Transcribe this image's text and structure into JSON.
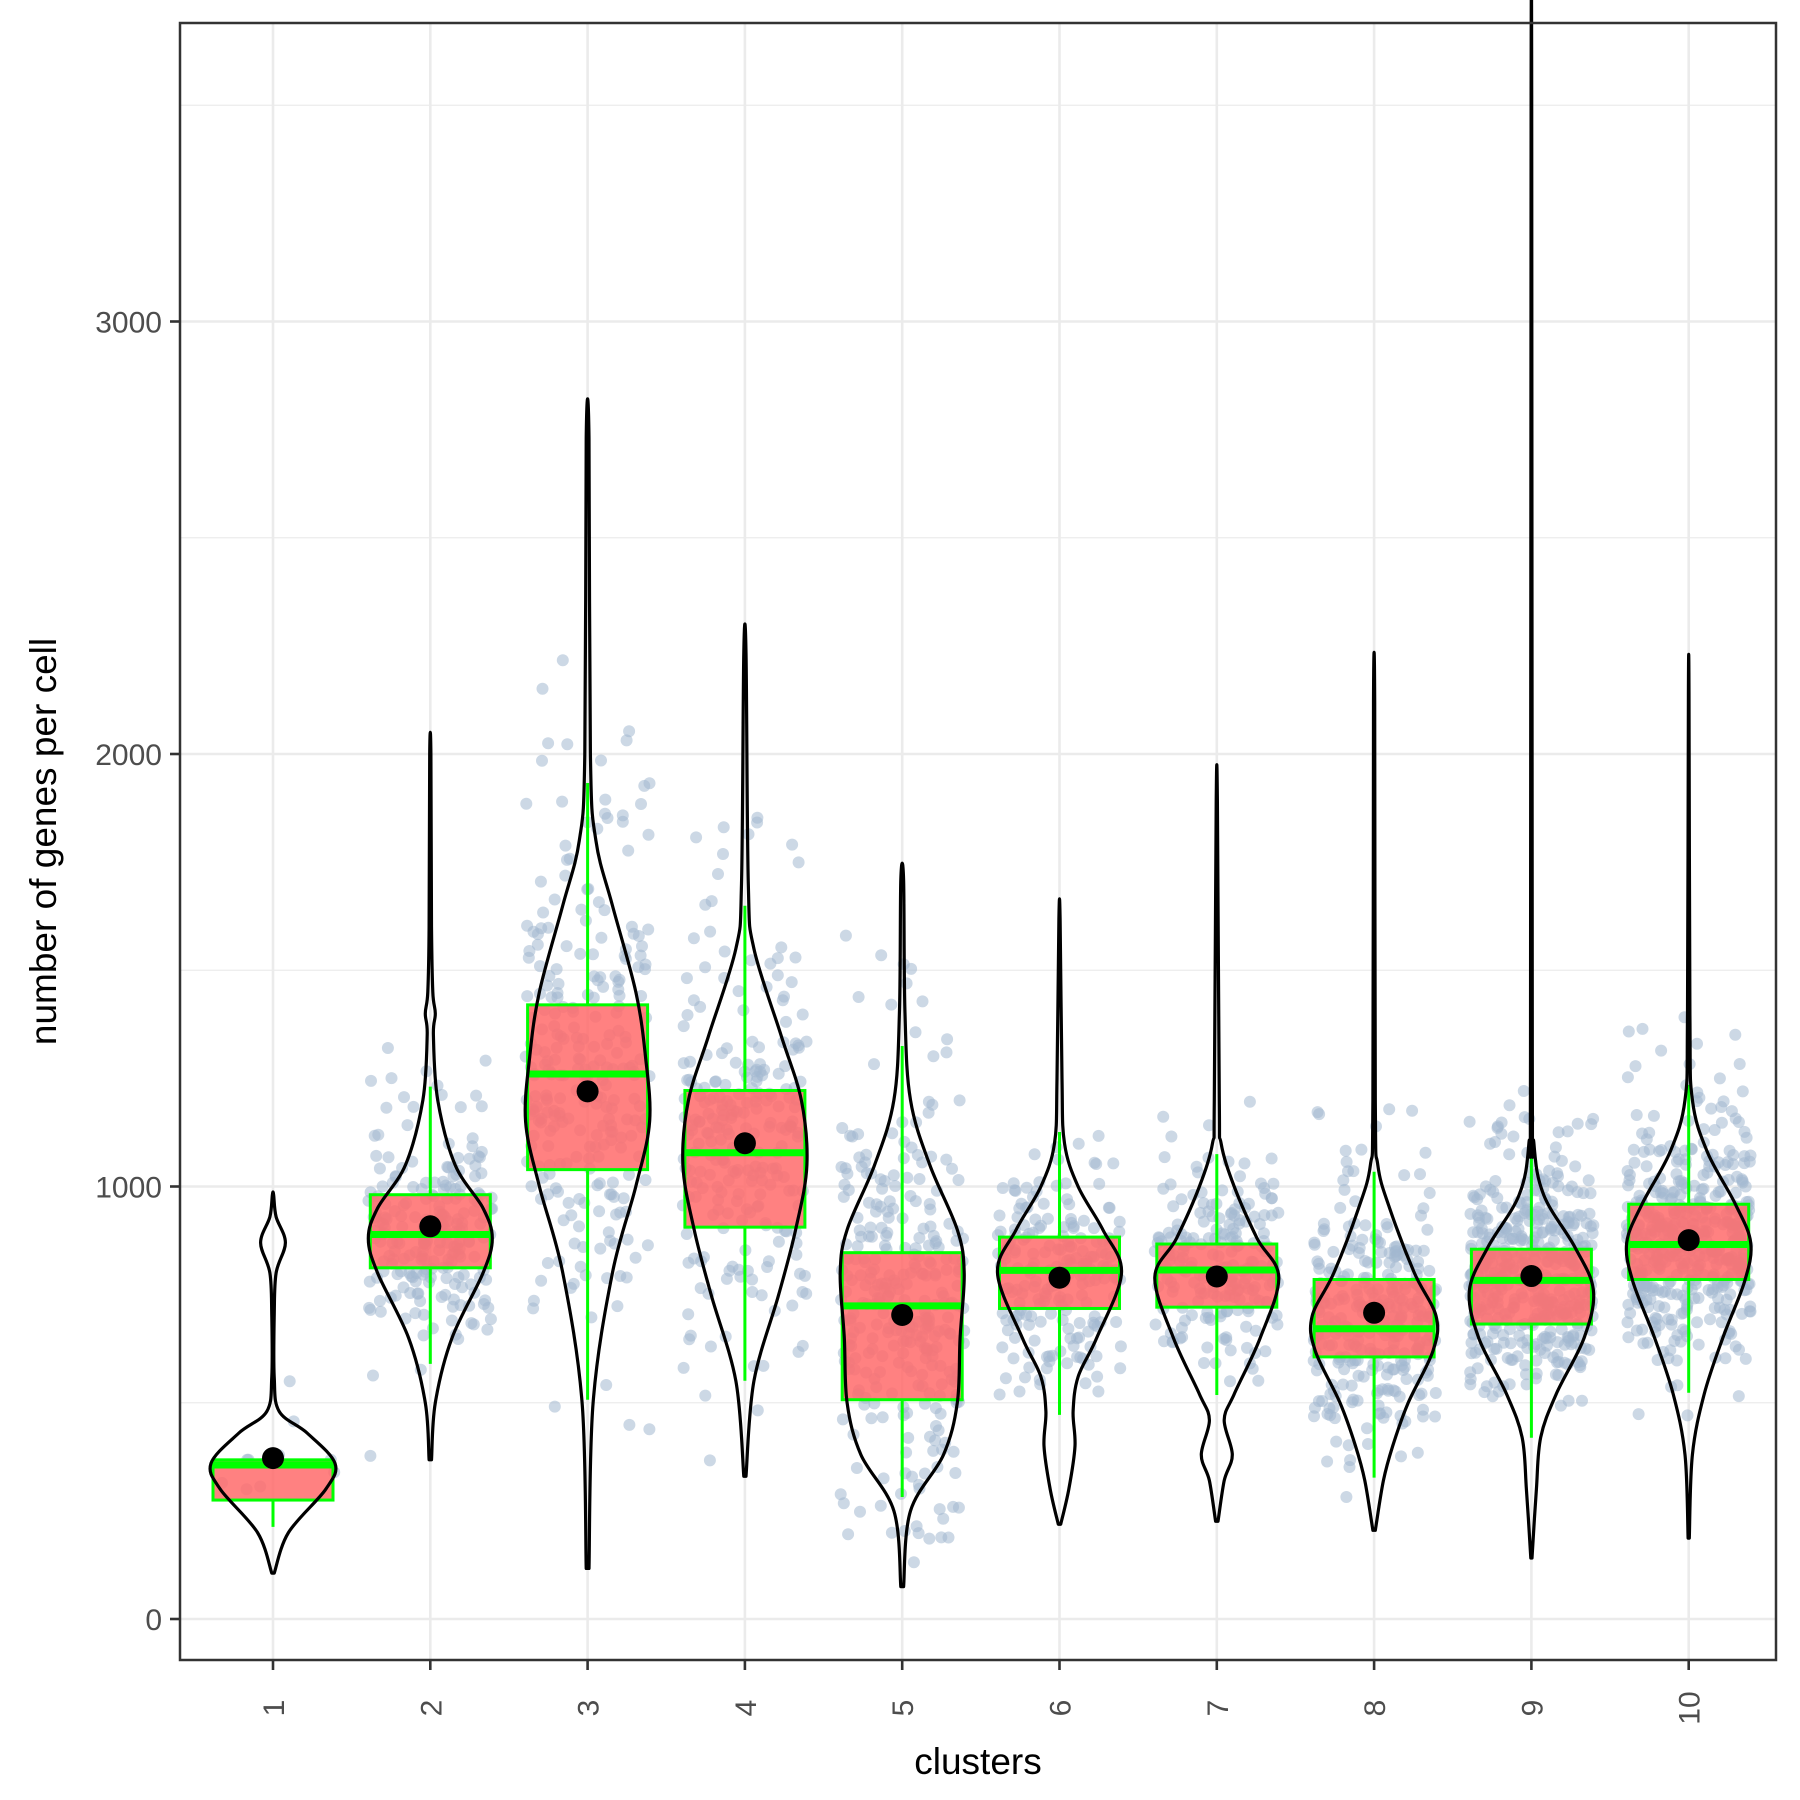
{
  "chart_data": {
    "type": "violin-box-jitter",
    "title": "",
    "xlabel": "clusters",
    "ylabel": "number of genes per cell",
    "ylim": [
      -90,
      3800
    ],
    "y_major_ticks": [
      0,
      1000,
      2000,
      3000
    ],
    "y_minor_gridlines": [
      500,
      1500,
      2500,
      3500
    ],
    "grid": true,
    "legend": "none",
    "x_tick_label_rotation": "vertical",
    "categories": [
      "1",
      "2",
      "3",
      "4",
      "5",
      "6",
      "7",
      "8",
      "9",
      "10"
    ],
    "colors": {
      "box_fill": "#ff6b6b",
      "box_border": "#00ff00",
      "violin_line": "#000000",
      "mean_dot": "#000000",
      "points": "#a3b8d0",
      "grid": "#ebebeb",
      "panel_border": "#333333"
    },
    "series": [
      {
        "cluster": "1",
        "n_points": 10,
        "violin_min": 106,
        "violin_max": 981,
        "whisker_low": 213,
        "q1": 275,
        "median": 356,
        "q3": 368,
        "whisker_high": 368,
        "mean": 372,
        "density": [
          [
            106,
            0.02
          ],
          [
            200,
            0.25
          ],
          [
            300,
            0.85
          ],
          [
            360,
            1.0
          ],
          [
            430,
            0.55
          ],
          [
            480,
            0.1
          ],
          [
            560,
            0.02
          ],
          [
            700,
            0.02
          ],
          [
            800,
            0.05
          ],
          [
            870,
            0.2
          ],
          [
            930,
            0.05
          ],
          [
            981,
            0.01
          ]
        ]
      },
      {
        "cluster": "2",
        "n_points": 220,
        "violin_min": 368,
        "violin_max": 2000,
        "whisker_low": 590,
        "q1": 812,
        "median": 889,
        "q3": 981,
        "whisker_high": 1231,
        "mean": 908,
        "density": [
          [
            368,
            0.02
          ],
          [
            500,
            0.08
          ],
          [
            650,
            0.35
          ],
          [
            800,
            0.85
          ],
          [
            880,
            1.0
          ],
          [
            950,
            0.85
          ],
          [
            1050,
            0.4
          ],
          [
            1200,
            0.12
          ],
          [
            1350,
            0.05
          ],
          [
            1400,
            0.08
          ],
          [
            1450,
            0.04
          ],
          [
            1600,
            0.02
          ],
          [
            2000,
            0.01
          ]
        ]
      },
      {
        "cluster": "3",
        "n_points": 260,
        "violin_min": 117,
        "violin_max": 2730,
        "whisker_low": 507,
        "q1": 1039,
        "median": 1260,
        "q3": 1420,
        "whisker_high": 1933,
        "mean": 1220,
        "density": [
          [
            117,
            0.01
          ],
          [
            500,
            0.04
          ],
          [
            800,
            0.18
          ],
          [
            1000,
            0.35
          ],
          [
            1150,
            0.45
          ],
          [
            1300,
            0.42
          ],
          [
            1450,
            0.35
          ],
          [
            1650,
            0.18
          ],
          [
            1800,
            0.06
          ],
          [
            2000,
            0.02
          ],
          [
            2730,
            0.01
          ]
        ]
      },
      {
        "cluster": "4",
        "n_points": 240,
        "violin_min": 330,
        "violin_max": 2234,
        "whisker_low": 551,
        "q1": 906,
        "median": 1078,
        "q3": 1222,
        "whisker_high": 1649,
        "mean": 1100,
        "density": [
          [
            330,
            0.01
          ],
          [
            550,
            0.08
          ],
          [
            750,
            0.3
          ],
          [
            900,
            0.45
          ],
          [
            1050,
            0.55
          ],
          [
            1200,
            0.5
          ],
          [
            1350,
            0.32
          ],
          [
            1550,
            0.08
          ],
          [
            1700,
            0.03
          ],
          [
            2234,
            0.01
          ]
        ]
      },
      {
        "cluster": "5",
        "n_points": 300,
        "violin_min": 75,
        "violin_max": 1709,
        "whisker_low": 282,
        "q1": 507,
        "median": 724,
        "q3": 847,
        "whisker_high": 1325,
        "mean": 703,
        "density": [
          [
            75,
            0.01
          ],
          [
            250,
            0.06
          ],
          [
            380,
            0.3
          ],
          [
            500,
            0.4
          ],
          [
            650,
            0.42
          ],
          [
            800,
            0.45
          ],
          [
            900,
            0.4
          ],
          [
            1050,
            0.2
          ],
          [
            1200,
            0.06
          ],
          [
            1400,
            0.02
          ],
          [
            1709,
            0.01
          ]
        ]
      },
      {
        "cluster": "6",
        "n_points": 200,
        "violin_min": 219,
        "violin_max": 1619,
        "whisker_low": 472,
        "q1": 718,
        "median": 806,
        "q3": 883,
        "whisker_high": 1126,
        "mean": 789,
        "density": [
          [
            219,
            0.02
          ],
          [
            300,
            0.15
          ],
          [
            400,
            0.25
          ],
          [
            480,
            0.22
          ],
          [
            560,
            0.3
          ],
          [
            650,
            0.6
          ],
          [
            800,
            1.0
          ],
          [
            900,
            0.7
          ],
          [
            1000,
            0.3
          ],
          [
            1100,
            0.08
          ],
          [
            1250,
            0.04
          ],
          [
            1619,
            0.01
          ]
        ]
      },
      {
        "cluster": "7",
        "n_points": 200,
        "violin_min": 226,
        "violin_max": 1889,
        "whisker_low": 518,
        "q1": 721,
        "median": 807,
        "q3": 867,
        "whisker_high": 1075,
        "mean": 792,
        "density": [
          [
            226,
            0.02
          ],
          [
            320,
            0.12
          ],
          [
            380,
            0.25
          ],
          [
            460,
            0.12
          ],
          [
            520,
            0.28
          ],
          [
            650,
            0.7
          ],
          [
            790,
            1.0
          ],
          [
            880,
            0.65
          ],
          [
            1000,
            0.28
          ],
          [
            1100,
            0.07
          ],
          [
            1200,
            0.04
          ],
          [
            1889,
            0.01
          ]
        ]
      },
      {
        "cluster": "8",
        "n_points": 300,
        "violin_min": 205,
        "violin_max": 2120,
        "whisker_low": 327,
        "q1": 606,
        "median": 671,
        "q3": 785,
        "whisker_high": 1034,
        "mean": 708,
        "density": [
          [
            205,
            0.02
          ],
          [
            320,
            0.15
          ],
          [
            400,
            0.3
          ],
          [
            500,
            0.55
          ],
          [
            620,
            0.95
          ],
          [
            700,
            1.0
          ],
          [
            800,
            0.65
          ],
          [
            950,
            0.25
          ],
          [
            1050,
            0.06
          ],
          [
            1200,
            0.02
          ],
          [
            2120,
            0.01
          ]
        ]
      },
      {
        "cluster": "9",
        "n_points": 450,
        "violin_min": 141,
        "violin_max": 3523,
        "whisker_low": 419,
        "q1": 682,
        "median": 783,
        "q3": 855,
        "whisker_high": 1120,
        "mean": 793,
        "density": [
          [
            141,
            0.01
          ],
          [
            300,
            0.08
          ],
          [
            420,
            0.15
          ],
          [
            520,
            0.4
          ],
          [
            650,
            0.85
          ],
          [
            760,
            1.0
          ],
          [
            860,
            0.7
          ],
          [
            980,
            0.2
          ],
          [
            1100,
            0.04
          ],
          [
            1300,
            0.015
          ],
          [
            3523,
            0.005
          ]
        ]
      },
      {
        "cluster": "10",
        "n_points": 450,
        "violin_min": 187,
        "violin_max": 2138,
        "whisker_low": 523,
        "q1": 785,
        "median": 866,
        "q3": 959,
        "whisker_high": 1235,
        "mean": 876,
        "density": [
          [
            187,
            0.01
          ],
          [
            380,
            0.06
          ],
          [
            520,
            0.25
          ],
          [
            650,
            0.55
          ],
          [
            780,
            0.9
          ],
          [
            870,
            1.0
          ],
          [
            960,
            0.75
          ],
          [
            1080,
            0.3
          ],
          [
            1200,
            0.06
          ],
          [
            1400,
            0.02
          ],
          [
            2138,
            0.005
          ]
        ]
      }
    ]
  }
}
